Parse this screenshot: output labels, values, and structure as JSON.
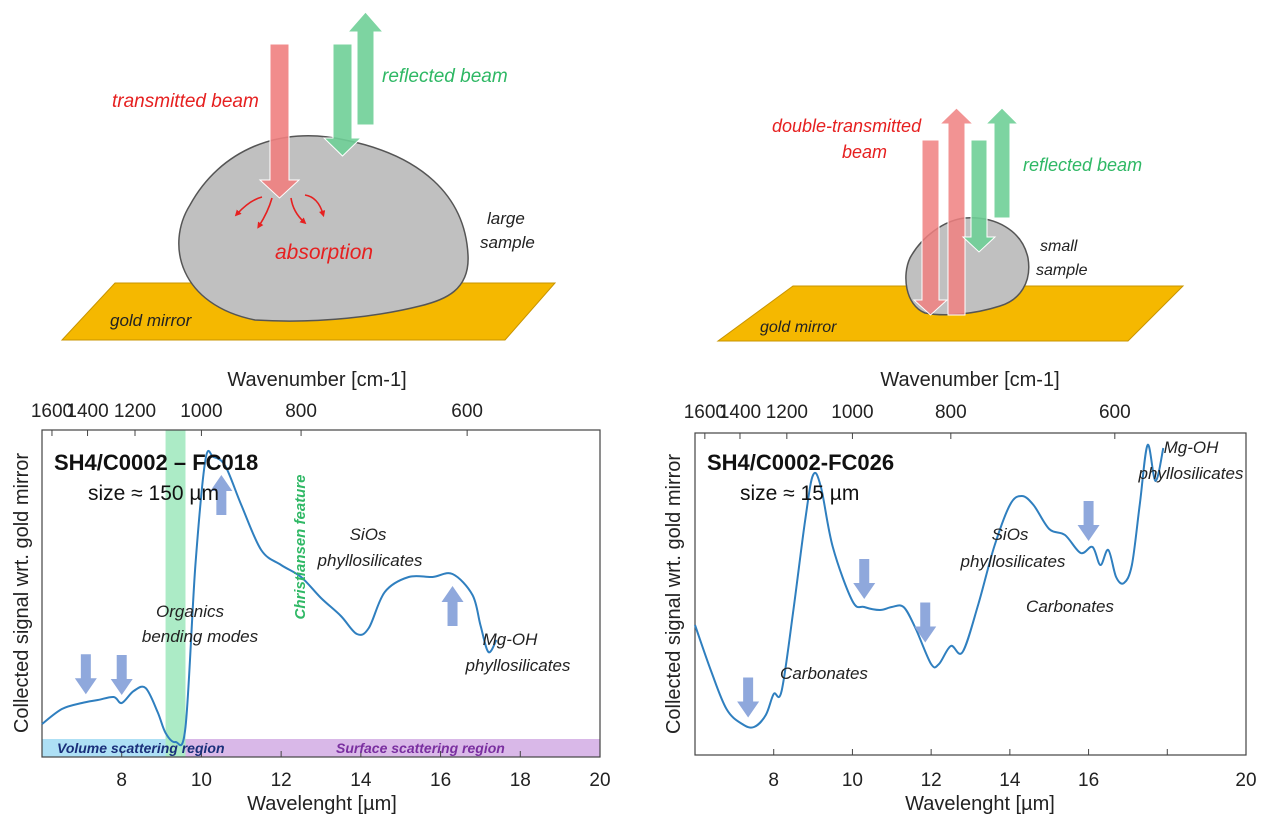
{
  "top_left": {
    "labels": {
      "transmitted": "transmitted beam",
      "reflected": "reflected beam",
      "absorption": "absorption",
      "large_sample": [
        "large",
        "sample"
      ],
      "mirror": "gold mirror"
    }
  },
  "top_right": {
    "labels": {
      "double_transmitted": [
        "double-transmitted",
        "beam"
      ],
      "reflected": "reflected beam",
      "small_sample": [
        "small",
        "sample"
      ],
      "mirror": "gold mirror"
    }
  },
  "colors": {
    "transmitted": "#f08080",
    "reflected": "#6fcf97",
    "mirror": "#f5b800",
    "sample": "#c0c0c0",
    "spectrum": "#2f7fbf",
    "marker_arrow": "#8fa8dc",
    "christiansen": "#7fe0a7",
    "volume_region": "#aee0f5",
    "surface_region": "#d9b8e8"
  },
  "chart_data": [
    {
      "type": "line",
      "title": "SH4/C0002 – FC018",
      "subtitle": "size ≈ 150 µm",
      "xlabel": "Wavelenght [µm]",
      "ylabel": "Collected signal wrt. gold mirror",
      "top_axis_label": "Wavenumber [cm-1]",
      "xlim": [
        6.0,
        20.0
      ],
      "x_ticks": [
        8,
        10,
        12,
        14,
        16,
        18,
        20
      ],
      "top_ticks": [
        1600,
        1400,
        1200,
        1000,
        800,
        600
      ],
      "series": [
        {
          "x": [
            6.0,
            6.5,
            7.0,
            7.4,
            7.8,
            8.0,
            8.3,
            8.6,
            8.9,
            9.1,
            9.35,
            9.6,
            9.85,
            10.1,
            10.3,
            10.6,
            11.0,
            11.5,
            12.0,
            12.5,
            13.0,
            13.5,
            13.9,
            14.2,
            14.6,
            15.2,
            15.8,
            16.3,
            16.8,
            17.0,
            17.2,
            17.4
          ],
          "y": [
            0.07,
            0.12,
            0.14,
            0.15,
            0.16,
            0.14,
            0.18,
            0.19,
            0.11,
            0.04,
            0.01,
            0.06,
            0.6,
            0.95,
            0.96,
            0.93,
            0.8,
            0.65,
            0.6,
            0.56,
            0.49,
            0.43,
            0.37,
            0.39,
            0.51,
            0.56,
            0.56,
            0.57,
            0.5,
            0.4,
            0.31,
            0.35
          ]
        }
      ],
      "christiansen_band": {
        "x_range": [
          9.1,
          9.6
        ],
        "label": "Christiansen feature"
      },
      "regions": [
        {
          "label": "Volume scattering region",
          "x_range": [
            6.0,
            9.1
          ]
        },
        {
          "label": "Surface scattering region",
          "x_range": [
            9.6,
            20.0
          ]
        }
      ],
      "annotations": [
        {
          "text": [
            "Organics",
            "bending modes"
          ],
          "arrows_x": [
            7.1,
            8.0
          ]
        },
        {
          "text": [
            "SiOs",
            "phyllosilicates"
          ],
          "arrows_x": [
            10.5
          ]
        },
        {
          "text": [
            "Mg-OH",
            "phyllosilicates"
          ],
          "arrows_x": [
            16.3
          ]
        }
      ]
    },
    {
      "type": "line",
      "title": "SH4/C0002-FC026",
      "subtitle": "size ≈ 15 µm",
      "xlabel": "Wavelenght [µm]",
      "ylabel": "Collected signal wrt. gold mirror",
      "top_axis_label": "Wavenumber [cm-1]",
      "xlim": [
        6.0,
        20.0
      ],
      "x_ticks": [
        8,
        10,
        12,
        14,
        16,
        18,
        20
      ],
      "x_tick_labels": [
        "8",
        "10",
        "12",
        "14",
        "16",
        "",
        "20"
      ],
      "top_ticks": [
        1600,
        1400,
        1200,
        1000,
        800,
        600
      ],
      "series": [
        {
          "x": [
            6.0,
            6.4,
            6.8,
            7.2,
            7.5,
            7.8,
            8.0,
            8.2,
            8.5,
            8.8,
            9.0,
            9.2,
            9.5,
            10.0,
            10.3,
            10.7,
            11.0,
            11.3,
            11.6,
            12.0,
            12.2,
            12.5,
            12.8,
            13.2,
            13.6,
            14.0,
            14.3,
            14.6,
            15.0,
            15.4,
            15.8,
            16.1,
            16.3,
            16.5,
            16.7,
            16.9,
            17.1,
            17.3,
            17.5,
            17.7,
            17.9
          ],
          "y": [
            0.4,
            0.25,
            0.12,
            0.07,
            0.06,
            0.1,
            0.17,
            0.18,
            0.45,
            0.75,
            0.9,
            0.86,
            0.66,
            0.48,
            0.46,
            0.45,
            0.46,
            0.46,
            0.39,
            0.27,
            0.27,
            0.33,
            0.31,
            0.47,
            0.66,
            0.8,
            0.83,
            0.8,
            0.72,
            0.7,
            0.64,
            0.66,
            0.6,
            0.65,
            0.56,
            0.54,
            0.6,
            0.8,
            1.0,
            0.88,
            0.99
          ]
        }
      ],
      "annotations": [
        {
          "text": [
            "Carbonates"
          ],
          "arrows_x": [
            7.35
          ]
        },
        {
          "text": [
            "SiOs",
            "phyllosilicates"
          ],
          "arrows_x": [
            10.3
          ]
        },
        {
          "text": [
            "Carbonates"
          ],
          "arrows_x": [
            11.85
          ]
        },
        {
          "text": [
            "Mg-OH",
            "phyllosilicates"
          ],
          "arrows_x": [
            16.0
          ]
        }
      ]
    }
  ]
}
